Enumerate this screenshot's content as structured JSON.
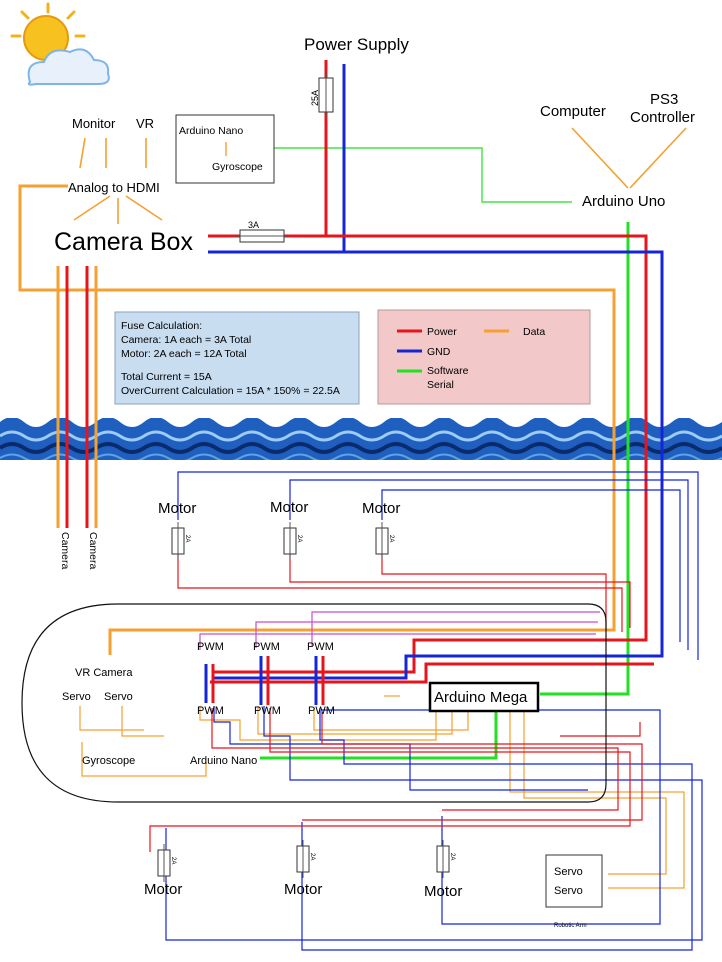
{
  "labels": {
    "power_supply": "Power Supply",
    "fuse_25a": "25A",
    "computer": "Computer",
    "ps3_line1": "PS3",
    "ps3_line2": "Controller",
    "arduino_uno": "Arduino Uno",
    "monitor": "Monitor",
    "vr": "VR",
    "analog_to_hdmi": "Analog to HDMI",
    "camera_box": "Camera Box",
    "fuse_3a": "3A",
    "arduino_nano_top": "Arduino Nano",
    "gyroscope_top": "Gyroscope",
    "camera_1": "Camera",
    "camera_2": "Camera",
    "motor": "Motor",
    "fuse_2a": "2A",
    "pwm": "PWM",
    "vr_camera": "VR Camera",
    "servo": "Servo",
    "arduino_mega": "Arduino Mega",
    "gyroscope_bottom": "Gyroscope",
    "arduino_nano_bottom": "Arduino Nano",
    "robotic_arm": "Robotic Arm"
  },
  "fuse_calc": {
    "line1": "Fuse Calculation:",
    "line2": "Camera: 1A each = 3A Total",
    "line3": "Motor: 2A each     = 12A Total",
    "line4": "Total Current = 15A",
    "line5": "OverCurrent Calculation = 15A * 150% = 22.5A"
  },
  "legend": {
    "power": "Power",
    "gnd": "GND",
    "serial_line1": "Software",
    "serial_line2": "Serial",
    "data": "Data"
  },
  "colors": {
    "power": "#e8141c",
    "gnd": "#1426d8",
    "serial": "#22e022",
    "data": "#f5a030",
    "fuse_panel": "#c9ddf0",
    "legend_panel": "#f2c8c8",
    "water_dark": "#0a2a6a",
    "water_mid": "#1f5fc0"
  },
  "icons": {
    "weather": "sun-behind-cloud-icon"
  }
}
